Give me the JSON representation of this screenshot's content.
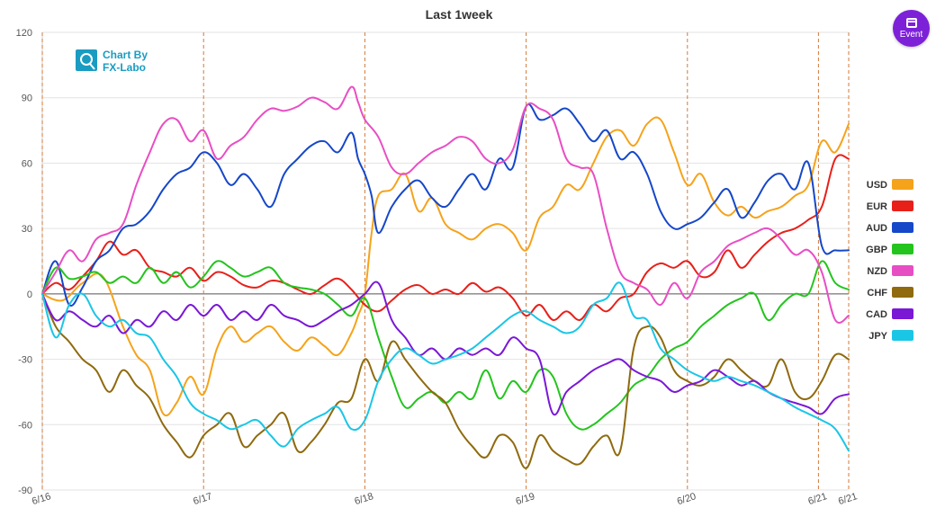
{
  "event_button": {
    "label": "Event",
    "icon": "calendar-icon",
    "color": "#7c21d8"
  },
  "logo": {
    "line1": "Chart By",
    "line2": "FX-Labo",
    "icon": "chart-magnifier-icon"
  },
  "chart_data": {
    "type": "line",
    "title": "Last 1week",
    "xlabel": "",
    "ylabel": "",
    "ylim": [
      -90,
      120
    ],
    "y_ticks": [
      120,
      90,
      60,
      30,
      0,
      -30,
      -60,
      -90
    ],
    "xlim": [
      0,
      120
    ],
    "x_ticks": [
      {
        "x": 0,
        "label": "6/16"
      },
      {
        "x": 24,
        "label": "6/17"
      },
      {
        "x": 48,
        "label": "6/18"
      },
      {
        "x": 72,
        "label": "6/19"
      },
      {
        "x": 96,
        "label": "6/20"
      },
      {
        "x": 115.5,
        "label": "6/21"
      },
      {
        "x": 120,
        "label": "6/21"
      }
    ],
    "grid": true,
    "legend_position": "right",
    "series": [
      {
        "name": "USD",
        "color": "#f5a31a",
        "x": [
          0,
          3,
          6,
          9,
          12,
          14,
          16,
          18,
          20,
          22,
          24,
          26,
          28,
          30,
          32,
          34,
          36,
          38,
          40,
          42,
          44,
          46,
          47,
          48,
          49,
          50,
          52,
          54,
          56,
          58,
          60,
          62,
          64,
          66,
          68,
          70,
          72,
          74,
          76,
          78,
          80,
          82,
          84,
          86,
          88,
          90,
          92,
          94,
          96,
          98,
          100,
          102,
          104,
          106,
          108,
          110,
          112,
          114,
          116,
          118,
          120
        ],
        "y": [
          0,
          -3,
          5,
          8,
          -15,
          -28,
          -35,
          -55,
          -50,
          -38,
          -46,
          -25,
          -15,
          -22,
          -18,
          -15,
          -22,
          -26,
          -20,
          -24,
          -28,
          -18,
          -10,
          0,
          28,
          45,
          48,
          55,
          38,
          44,
          32,
          28,
          25,
          30,
          32,
          28,
          20,
          35,
          40,
          50,
          48,
          60,
          72,
          75,
          68,
          78,
          80,
          65,
          50,
          55,
          42,
          36,
          40,
          35,
          38,
          40,
          45,
          50,
          70,
          65,
          78
        ]
      },
      {
        "name": "EUR",
        "color": "#e8201a",
        "x": [
          0,
          2,
          4,
          6,
          8,
          10,
          12,
          14,
          16,
          18,
          20,
          22,
          24,
          26,
          28,
          30,
          32,
          34,
          36,
          38,
          40,
          42,
          44,
          46,
          48,
          50,
          52,
          54,
          56,
          58,
          60,
          62,
          64,
          66,
          68,
          70,
          72,
          74,
          76,
          78,
          80,
          82,
          84,
          86,
          88,
          90,
          92,
          94,
          96,
          98,
          100,
          102,
          104,
          106,
          108,
          110,
          112,
          114,
          116,
          118,
          120
        ],
        "y": [
          0,
          5,
          2,
          8,
          15,
          24,
          18,
          20,
          12,
          10,
          8,
          12,
          6,
          10,
          8,
          4,
          3,
          6,
          5,
          2,
          0,
          4,
          7,
          2,
          -5,
          -8,
          -3,
          2,
          4,
          0,
          2,
          0,
          5,
          1,
          3,
          -2,
          -10,
          -5,
          -12,
          -8,
          -12,
          -5,
          -8,
          -2,
          0,
          10,
          14,
          12,
          15,
          8,
          10,
          20,
          12,
          18,
          24,
          28,
          30,
          34,
          40,
          62,
          62
        ]
      },
      {
        "name": "AUD",
        "color": "#1547c9",
        "x": [
          0,
          2,
          4,
          6,
          8,
          10,
          12,
          14,
          16,
          18,
          20,
          22,
          24,
          26,
          28,
          30,
          32,
          34,
          36,
          38,
          40,
          42,
          44,
          46,
          47,
          48,
          49,
          50,
          52,
          54,
          56,
          58,
          60,
          62,
          64,
          66,
          68,
          70,
          72,
          74,
          76,
          78,
          80,
          82,
          84,
          86,
          88,
          90,
          92,
          94,
          96,
          98,
          100,
          102,
          104,
          106,
          108,
          110,
          112,
          114,
          116,
          118,
          120
        ],
        "y": [
          0,
          15,
          -5,
          3,
          15,
          20,
          30,
          32,
          38,
          48,
          55,
          58,
          65,
          60,
          50,
          55,
          48,
          40,
          55,
          62,
          68,
          70,
          65,
          74,
          62,
          55,
          45,
          28,
          40,
          48,
          52,
          44,
          40,
          48,
          55,
          48,
          62,
          58,
          86,
          80,
          82,
          85,
          78,
          70,
          75,
          62,
          65,
          55,
          38,
          30,
          32,
          35,
          42,
          48,
          35,
          42,
          52,
          55,
          48,
          60,
          22,
          20,
          20
        ]
      },
      {
        "name": "GBP",
        "color": "#24c41e",
        "x": [
          0,
          2,
          4,
          6,
          8,
          10,
          12,
          14,
          16,
          18,
          20,
          22,
          24,
          26,
          28,
          30,
          32,
          34,
          36,
          38,
          40,
          42,
          44,
          46,
          48,
          50,
          52,
          54,
          56,
          58,
          60,
          62,
          64,
          66,
          68,
          70,
          72,
          74,
          76,
          78,
          80,
          82,
          84,
          86,
          88,
          90,
          92,
          94,
          96,
          98,
          100,
          102,
          104,
          106,
          108,
          110,
          112,
          114,
          116,
          118,
          120
        ],
        "y": [
          0,
          12,
          7,
          8,
          10,
          5,
          8,
          5,
          12,
          5,
          10,
          3,
          8,
          15,
          12,
          8,
          10,
          12,
          5,
          3,
          2,
          0,
          -5,
          -10,
          -2,
          -20,
          -38,
          -52,
          -48,
          -45,
          -50,
          -45,
          -48,
          -35,
          -48,
          -40,
          -45,
          -35,
          -38,
          -55,
          -62,
          -60,
          -55,
          -50,
          -42,
          -38,
          -30,
          -25,
          -22,
          -15,
          -10,
          -5,
          -2,
          0,
          -12,
          -5,
          0,
          0,
          15,
          5,
          2
        ]
      },
      {
        "name": "NZD",
        "color": "#e84ec4",
        "x": [
          0,
          2,
          4,
          6,
          8,
          10,
          12,
          14,
          16,
          18,
          20,
          22,
          24,
          26,
          28,
          30,
          32,
          34,
          36,
          38,
          40,
          42,
          44,
          46,
          47,
          48,
          50,
          52,
          54,
          56,
          58,
          60,
          62,
          64,
          66,
          68,
          70,
          72,
          74,
          76,
          78,
          80,
          82,
          84,
          86,
          88,
          90,
          92,
          94,
          96,
          98,
          100,
          102,
          104,
          106,
          108,
          110,
          112,
          114,
          116,
          118,
          120
        ],
        "y": [
          0,
          10,
          20,
          15,
          25,
          28,
          32,
          50,
          65,
          78,
          80,
          70,
          75,
          62,
          68,
          72,
          80,
          85,
          84,
          86,
          90,
          88,
          85,
          95,
          88,
          80,
          72,
          58,
          55,
          60,
          65,
          68,
          72,
          70,
          62,
          60,
          66,
          86,
          85,
          80,
          62,
          58,
          55,
          30,
          10,
          5,
          2,
          -5,
          5,
          -2,
          10,
          15,
          22,
          25,
          28,
          30,
          25,
          18,
          20,
          10,
          -12,
          -10
        ]
      },
      {
        "name": "CHF",
        "color": "#8f6a0e",
        "x": [
          0,
          2,
          4,
          6,
          8,
          10,
          12,
          14,
          16,
          18,
          20,
          22,
          24,
          26,
          28,
          30,
          32,
          34,
          36,
          38,
          40,
          42,
          44,
          46,
          48,
          50,
          52,
          54,
          56,
          58,
          60,
          62,
          64,
          66,
          68,
          70,
          72,
          74,
          76,
          78,
          80,
          82,
          84,
          86,
          88,
          90,
          92,
          94,
          96,
          98,
          100,
          102,
          104,
          106,
          108,
          110,
          112,
          114,
          116,
          118,
          120
        ],
        "y": [
          0,
          -15,
          -22,
          -30,
          -35,
          -45,
          -35,
          -42,
          -48,
          -60,
          -68,
          -75,
          -65,
          -60,
          -55,
          -70,
          -65,
          -60,
          -55,
          -72,
          -68,
          -60,
          -50,
          -48,
          -30,
          -40,
          -22,
          -30,
          -38,
          -45,
          -50,
          -62,
          -70,
          -75,
          -65,
          -68,
          -80,
          -65,
          -72,
          -76,
          -78,
          -70,
          -65,
          -72,
          -25,
          -15,
          -20,
          -35,
          -40,
          -42,
          -38,
          -30,
          -35,
          -40,
          -42,
          -30,
          -45,
          -48,
          -40,
          -28,
          -30
        ]
      },
      {
        "name": "CAD",
        "color": "#7a18d6",
        "x": [
          0,
          2,
          4,
          6,
          8,
          10,
          12,
          14,
          16,
          18,
          20,
          22,
          24,
          26,
          28,
          30,
          32,
          34,
          36,
          38,
          40,
          42,
          44,
          46,
          48,
          50,
          52,
          54,
          56,
          58,
          60,
          62,
          64,
          66,
          68,
          70,
          72,
          74,
          76,
          78,
          80,
          82,
          84,
          86,
          88,
          90,
          92,
          94,
          96,
          98,
          100,
          102,
          104,
          106,
          108,
          110,
          112,
          114,
          116,
          118,
          120
        ],
        "y": [
          0,
          -12,
          -8,
          -12,
          -15,
          -10,
          -18,
          -12,
          -15,
          -8,
          -12,
          -5,
          -10,
          -5,
          -12,
          -8,
          -12,
          -5,
          -10,
          -12,
          -15,
          -12,
          -8,
          -5,
          0,
          5,
          -12,
          -20,
          -28,
          -25,
          -30,
          -25,
          -28,
          -25,
          -28,
          -20,
          -25,
          -30,
          -55,
          -45,
          -40,
          -35,
          -32,
          -30,
          -35,
          -38,
          -40,
          -45,
          -42,
          -40,
          -35,
          -38,
          -42,
          -40,
          -45,
          -48,
          -50,
          -52,
          -55,
          -48,
          -46
        ]
      },
      {
        "name": "JPY",
        "color": "#1ac6e6",
        "x": [
          0,
          2,
          4,
          6,
          8,
          10,
          12,
          14,
          16,
          18,
          20,
          22,
          24,
          26,
          28,
          30,
          32,
          34,
          36,
          38,
          40,
          42,
          44,
          46,
          48,
          50,
          52,
          54,
          56,
          58,
          60,
          62,
          64,
          66,
          68,
          70,
          72,
          74,
          76,
          78,
          80,
          82,
          84,
          86,
          88,
          90,
          92,
          94,
          96,
          98,
          100,
          102,
          104,
          106,
          108,
          110,
          112,
          114,
          116,
          118,
          120
        ],
        "y": [
          0,
          -20,
          -5,
          0,
          -10,
          -15,
          -12,
          -18,
          -20,
          -30,
          -38,
          -50,
          -55,
          -58,
          -62,
          -60,
          -58,
          -65,
          -70,
          -62,
          -58,
          -55,
          -52,
          -62,
          -58,
          -40,
          -30,
          -25,
          -28,
          -32,
          -30,
          -28,
          -25,
          -20,
          -15,
          -10,
          -8,
          -12,
          -15,
          -18,
          -15,
          -5,
          -2,
          5,
          -10,
          -12,
          -25,
          -30,
          -35,
          -38,
          -40,
          -38,
          -40,
          -42,
          -45,
          -48,
          -52,
          -55,
          -58,
          -62,
          -72
        ]
      }
    ]
  }
}
